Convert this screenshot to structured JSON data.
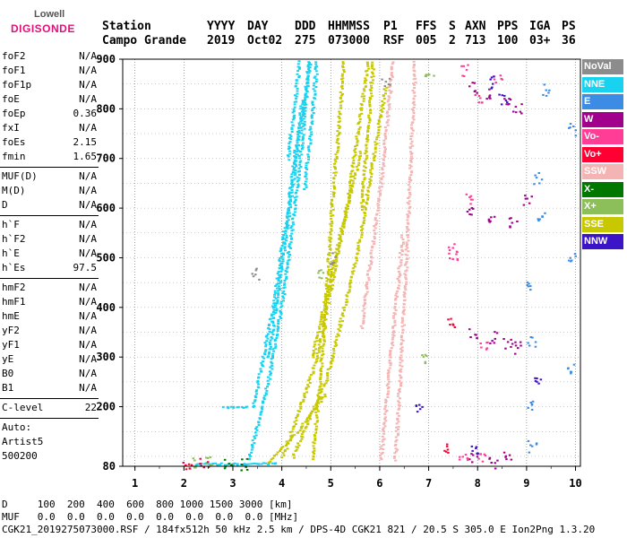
{
  "logo": {
    "line1": "Lowell",
    "line2": "DIGISONDE"
  },
  "header": {
    "row1": [
      "Station",
      "YYYY",
      "DAY",
      "DDD",
      "HHMMSS",
      "P1",
      "FFS",
      "S",
      "AXN",
      "PPS",
      "IGA",
      "PS"
    ],
    "row2": [
      "Campo Grande",
      "2019",
      "Oct02",
      "275",
      "073000",
      "RSF",
      "005",
      "2",
      "713",
      "100",
      "03+",
      "36"
    ]
  },
  "params": {
    "group1": [
      {
        "k": "foF2",
        "v": "N/A"
      },
      {
        "k": "foF1",
        "v": "N/A"
      },
      {
        "k": "foF1p",
        "v": "N/A"
      },
      {
        "k": "foE",
        "v": "N/A"
      },
      {
        "k": "foEp",
        "v": "0.36"
      },
      {
        "k": "fxI",
        "v": "N/A"
      },
      {
        "k": "foEs",
        "v": "2.15"
      },
      {
        "k": "fmin",
        "v": "1.65"
      }
    ],
    "group2": [
      {
        "k": "MUF(D)",
        "v": "N/A"
      },
      {
        "k": "M(D)",
        "v": "N/A"
      },
      {
        "k": "D",
        "v": "N/A"
      }
    ],
    "group3": [
      {
        "k": "h`F",
        "v": "N/A"
      },
      {
        "k": "h`F2",
        "v": "N/A"
      },
      {
        "k": "h`E",
        "v": "N/A"
      },
      {
        "k": "h`Es",
        "v": "97.5"
      }
    ],
    "group4": [
      {
        "k": "hmF2",
        "v": "N/A"
      },
      {
        "k": "hmF1",
        "v": "N/A"
      },
      {
        "k": "hmE",
        "v": "N/A"
      },
      {
        "k": "yF2",
        "v": "N/A"
      },
      {
        "k": "yF1",
        "v": "N/A"
      },
      {
        "k": "yE",
        "v": "N/A"
      },
      {
        "k": "B0",
        "v": "N/A"
      },
      {
        "k": "B1",
        "v": "N/A"
      }
    ],
    "clevel": {
      "k": "C-level",
      "v": "22"
    },
    "auto": [
      "Auto:",
      "Artist5",
      "500200"
    ]
  },
  "legend": [
    {
      "label": "NoVal",
      "color": "#8c8c8c"
    },
    {
      "label": "NNE",
      "color": "#19d2f0"
    },
    {
      "label": "E",
      "color": "#3c8ce6"
    },
    {
      "label": "W",
      "color": "#a0008c"
    },
    {
      "label": "Vo-",
      "color": "#ff3c96"
    },
    {
      "label": "Vo+",
      "color": "#ff0032"
    },
    {
      "label": "SSW",
      "color": "#f5b4b4"
    },
    {
      "label": "X-",
      "color": "#007800"
    },
    {
      "label": "X+",
      "color": "#8cbe5a"
    },
    {
      "label": "SSE",
      "color": "#c8c800"
    },
    {
      "label": "NNW",
      "color": "#3c14c8"
    }
  ],
  "footer": {
    "line1": "D     100  200  400  600  800 1000 1500 3000 [km]",
    "line2": "MUF   0.0  0.0  0.0  0.0  0.0  0.0  0.0  0.0 [MHz]",
    "line3": "CGK21_2019275073000.RSF / 184fx512h 50 kHz 2.5 km / DPS-4D CGK21 821 / 20.5 S 305.0 E Ion2Png 1.3.20"
  },
  "chart_data": {
    "type": "scatter",
    "title": "",
    "xlabel": "",
    "ylabel": "",
    "xlim": [
      0.75,
      10.1
    ],
    "ylim": [
      80,
      900
    ],
    "xticks": [
      1,
      2,
      3,
      4,
      5,
      6,
      7,
      8,
      9,
      10
    ],
    "yticks": [
      80,
      200,
      300,
      400,
      500,
      600,
      700,
      800,
      900
    ],
    "grid": true,
    "series": [
      {
        "name": "NNE",
        "color": "#19d2f0",
        "segments": [
          [
            [
              3.3,
              95
            ],
            [
              3.7,
              250
            ],
            [
              4.0,
              420
            ],
            [
              4.3,
              650
            ],
            [
              4.55,
              900
            ]
          ],
          [
            [
              3.7,
              300
            ],
            [
              4.0,
              500
            ],
            [
              4.3,
              730
            ],
            [
              4.55,
              900
            ]
          ],
          [
            [
              3.4,
              200
            ],
            [
              3.8,
              400
            ],
            [
              4.1,
              600
            ],
            [
              4.4,
              820
            ]
          ],
          [
            [
              4.45,
              640
            ],
            [
              4.7,
              900
            ]
          ],
          [
            [
              4.1,
              700
            ],
            [
              4.35,
              900
            ]
          ],
          [
            [
              2.2,
              86
            ],
            [
              3.4,
              86
            ],
            [
              3.9,
              88
            ]
          ],
          [
            [
              2.8,
              200
            ],
            [
              3.3,
              200
            ]
          ]
        ]
      },
      {
        "name": "SSE",
        "color": "#c8c800",
        "segments": [
          [
            [
              4.6,
              95
            ],
            [
              4.8,
              300
            ],
            [
              5.0,
              600
            ],
            [
              5.25,
              900
            ]
          ],
          [
            [
              4.0,
              100
            ],
            [
              4.7,
              300
            ],
            [
              5.3,
              600
            ],
            [
              5.75,
              900
            ]
          ],
          [
            [
              4.2,
              100
            ],
            [
              4.9,
              260
            ],
            [
              5.5,
              500
            ],
            [
              6.1,
              850
            ]
          ],
          [
            [
              4.6,
              300
            ],
            [
              5.2,
              560
            ],
            [
              5.6,
              720
            ]
          ],
          [
            [
              3.7,
              90
            ],
            [
              4.3,
              150
            ],
            [
              4.9,
              230
            ]
          ],
          [
            [
              5.6,
              600
            ],
            [
              5.85,
              900
            ]
          ]
        ]
      },
      {
        "name": "SSW",
        "color": "#f5b4b4",
        "segments": [
          [
            [
              6.3,
              95
            ],
            [
              6.5,
              450
            ],
            [
              6.7,
              900
            ]
          ],
          [
            [
              5.6,
              360
            ],
            [
              6.0,
              650
            ],
            [
              6.25,
              900
            ]
          ],
          [
            [
              6.0,
              95
            ],
            [
              6.2,
              300
            ],
            [
              6.45,
              550
            ]
          ]
        ]
      },
      {
        "name": "W",
        "color": "#a0008c",
        "points": [
          [
            7.9,
            845
          ],
          [
            8.2,
            830
          ],
          [
            8.6,
            815
          ],
          [
            8.8,
            800
          ],
          [
            7.8,
            600
          ],
          [
            8.3,
            580
          ],
          [
            8.7,
            570
          ],
          [
            9.0,
            620
          ],
          [
            7.9,
            350
          ],
          [
            8.3,
            340
          ],
          [
            8.6,
            330
          ],
          [
            8.8,
            320
          ],
          [
            7.9,
            95
          ],
          [
            8.3,
            90
          ],
          [
            8.6,
            100
          ]
        ]
      },
      {
        "name": "Vo-",
        "color": "#ff3c96",
        "points": [
          [
            7.7,
            880
          ],
          [
            8.0,
            820
          ],
          [
            8.4,
            860
          ],
          [
            7.8,
            620
          ],
          [
            7.45,
            520
          ],
          [
            7.5,
            505
          ],
          [
            8.1,
            320
          ],
          [
            7.7,
            100
          ],
          [
            8.05,
            95
          ]
        ]
      },
      {
        "name": "E",
        "color": "#3c8ce6",
        "points": [
          [
            9.4,
            840
          ],
          [
            9.9,
            760
          ],
          [
            9.2,
            660
          ],
          [
            9.3,
            580
          ],
          [
            9.9,
            500
          ],
          [
            9.05,
            440
          ],
          [
            9.1,
            330
          ],
          [
            9.9,
            280
          ],
          [
            9.05,
            205
          ],
          [
            9.1,
            120
          ]
        ]
      },
      {
        "name": "X+",
        "color": "#8cbe5a",
        "points": [
          [
            2.15,
            86
          ],
          [
            2.5,
            88
          ],
          [
            7.0,
            870
          ],
          [
            4.8,
            470
          ],
          [
            6.9,
            300
          ]
        ]
      },
      {
        "name": "X-",
        "color": "#007800",
        "points": [
          [
            2.9,
            88
          ],
          [
            3.2,
            86
          ]
        ]
      },
      {
        "name": "NNW",
        "color": "#3c14c8",
        "points": [
          [
            8.3,
            855
          ],
          [
            8.5,
            820
          ],
          [
            6.8,
            200
          ],
          [
            7.9,
            110
          ],
          [
            9.2,
            260
          ]
        ]
      },
      {
        "name": "Vo+",
        "color": "#ff0032",
        "points": [
          [
            2.05,
            86
          ],
          [
            2.4,
            86
          ],
          [
            7.35,
            120
          ],
          [
            7.45,
            370
          ]
        ]
      },
      {
        "name": "NoVal",
        "color": "#8c8c8c",
        "points": [
          [
            6.1,
            850
          ],
          [
            5.0,
            500
          ],
          [
            3.45,
            470
          ]
        ]
      }
    ]
  }
}
